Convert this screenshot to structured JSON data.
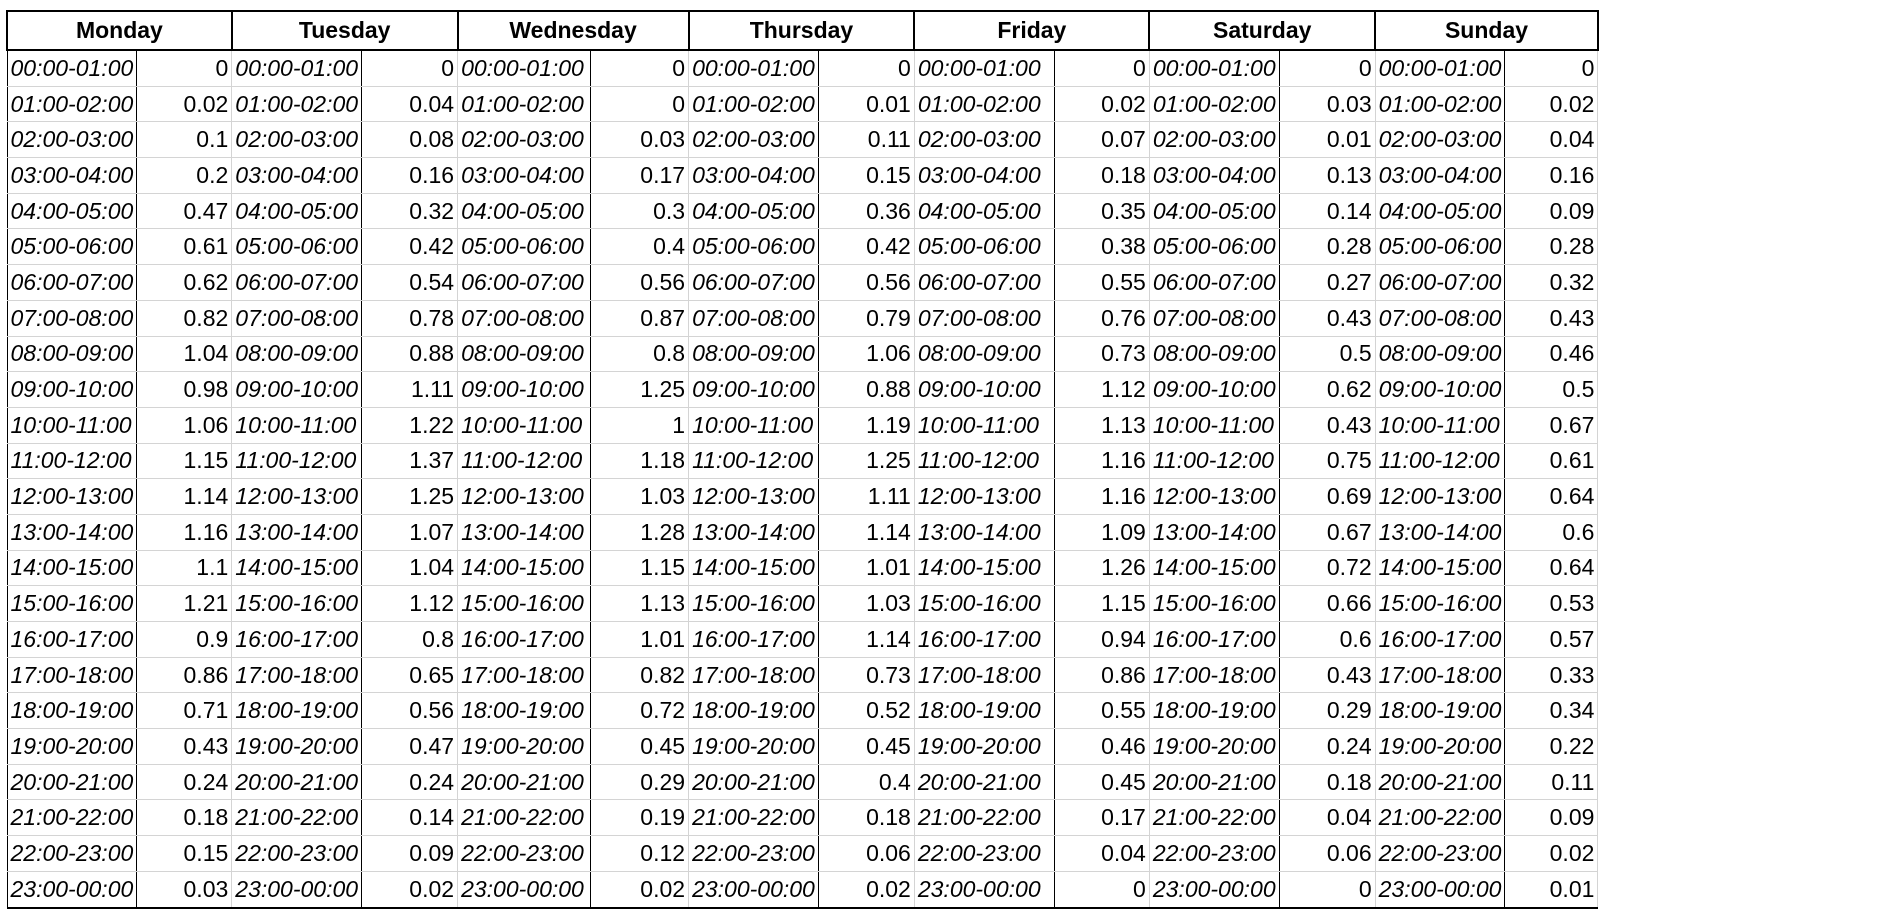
{
  "days": [
    "Monday",
    "Tuesday",
    "Wednesday",
    "Thursday",
    "Friday",
    "Saturday",
    "Sunday"
  ],
  "time_slots": [
    "00:00-01:00",
    "01:00-02:00",
    "02:00-03:00",
    "03:00-04:00",
    "04:00-05:00",
    "05:00-06:00",
    "06:00-07:00",
    "07:00-08:00",
    "08:00-09:00",
    "09:00-10:00",
    "10:00-11:00",
    "11:00-12:00",
    "12:00-13:00",
    "13:00-14:00",
    "14:00-15:00",
    "15:00-16:00",
    "16:00-17:00",
    "17:00-18:00",
    "18:00-19:00",
    "19:00-20:00",
    "20:00-21:00",
    "21:00-22:00",
    "22:00-23:00",
    "23:00-00:00"
  ],
  "values": {
    "Monday": [
      "0",
      "0.02",
      "0.1",
      "0.2",
      "0.47",
      "0.61",
      "0.62",
      "0.82",
      "1.04",
      "0.98",
      "1.06",
      "1.15",
      "1.14",
      "1.16",
      "1.1",
      "1.21",
      "0.9",
      "0.86",
      "0.71",
      "0.43",
      "0.24",
      "0.18",
      "0.15",
      "0.03"
    ],
    "Tuesday": [
      "0",
      "0.04",
      "0.08",
      "0.16",
      "0.32",
      "0.42",
      "0.54",
      "0.78",
      "0.88",
      "1.11",
      "1.22",
      "1.37",
      "1.25",
      "1.07",
      "1.04",
      "1.12",
      "0.8",
      "0.65",
      "0.56",
      "0.47",
      "0.24",
      "0.14",
      "0.09",
      "0.02"
    ],
    "Wednesday": [
      "0",
      "0",
      "0.03",
      "0.17",
      "0.3",
      "0.4",
      "0.56",
      "0.87",
      "0.8",
      "1.25",
      "1",
      "1.18",
      "1.03",
      "1.28",
      "1.15",
      "1.13",
      "1.01",
      "0.82",
      "0.72",
      "0.45",
      "0.29",
      "0.19",
      "0.12",
      "0.02"
    ],
    "Thursday": [
      "0",
      "0.01",
      "0.11",
      "0.15",
      "0.36",
      "0.42",
      "0.56",
      "0.79",
      "1.06",
      "0.88",
      "1.19",
      "1.25",
      "1.11",
      "1.14",
      "1.01",
      "1.03",
      "1.14",
      "0.73",
      "0.52",
      "0.45",
      "0.4",
      "0.18",
      "0.06",
      "0.02"
    ],
    "Friday": [
      "0",
      "0.02",
      "0.07",
      "0.18",
      "0.35",
      "0.38",
      "0.55",
      "0.76",
      "0.73",
      "1.12",
      "1.13",
      "1.16",
      "1.16",
      "1.09",
      "1.26",
      "1.15",
      "0.94",
      "0.86",
      "0.55",
      "0.46",
      "0.45",
      "0.17",
      "0.04",
      "0"
    ],
    "Saturday": [
      "0",
      "0.03",
      "0.01",
      "0.13",
      "0.14",
      "0.28",
      "0.27",
      "0.43",
      "0.5",
      "0.62",
      "0.43",
      "0.75",
      "0.69",
      "0.67",
      "0.72",
      "0.66",
      "0.6",
      "0.43",
      "0.29",
      "0.24",
      "0.18",
      "0.04",
      "0.06",
      "0"
    ],
    "Sunday": [
      "0",
      "0.02",
      "0.04",
      "0.16",
      "0.09",
      "0.28",
      "0.32",
      "0.43",
      "0.46",
      "0.5",
      "0.67",
      "0.61",
      "0.64",
      "0.6",
      "0.64",
      "0.53",
      "0.57",
      "0.33",
      "0.34",
      "0.22",
      "0.11",
      "0.09",
      "0.02",
      "0.01"
    ]
  }
}
